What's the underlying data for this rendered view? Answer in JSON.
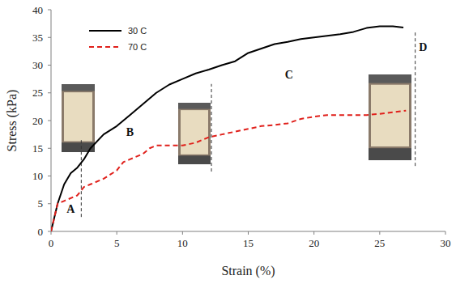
{
  "chart_data": {
    "type": "line",
    "x_label": "Strain (%)",
    "y_label": "Stress (kPa)",
    "xlim": [
      0,
      30
    ],
    "xticks": [
      0,
      5,
      10,
      15,
      20,
      25,
      30
    ],
    "ylim": [
      0,
      40
    ],
    "yticks": [
      0,
      5,
      10,
      15,
      20,
      25,
      30,
      35,
      40
    ],
    "grid": false,
    "legend": "top-left",
    "series": [
      {
        "name": "30 C",
        "color": "#000000",
        "line_style": "solid",
        "x": [
          0,
          0.5,
          1,
          1.5,
          2,
          2.5,
          3,
          4,
          5,
          6,
          7,
          8,
          9,
          10,
          11,
          12,
          13,
          14,
          15,
          16,
          17,
          18,
          19,
          20,
          21,
          22,
          23,
          24,
          25,
          26,
          26.8
        ],
        "values": [
          0,
          5,
          8.5,
          10.5,
          11.5,
          13,
          15,
          17.5,
          19,
          21,
          23,
          25,
          26.5,
          27.5,
          28.5,
          29.2,
          30,
          30.7,
          32.2,
          33,
          33.8,
          34.2,
          34.7,
          35,
          35.3,
          35.6,
          36,
          36.7,
          37,
          37,
          36.8
        ]
      },
      {
        "name": "70 C",
        "color": "#e0201b",
        "line_style": "dashed",
        "x": [
          0,
          0.5,
          1,
          2,
          2.5,
          3,
          4,
          5,
          5.5,
          6,
          7,
          7.5,
          8,
          9,
          10,
          11,
          12,
          13,
          14,
          15,
          16,
          17,
          18,
          19,
          20,
          21,
          22,
          23,
          24,
          25,
          26,
          27
        ],
        "values": [
          0,
          5,
          5.5,
          6.5,
          8,
          8.5,
          9.5,
          11,
          12.5,
          13,
          14,
          15,
          15.5,
          15.5,
          15.5,
          16,
          17,
          17.5,
          18,
          18.5,
          19,
          19.2,
          19.5,
          20.3,
          20.7,
          21,
          21,
          21,
          21,
          21.2,
          21.5,
          21.8
        ]
      }
    ],
    "annotations": [
      {
        "text": "A",
        "x": 1.5,
        "y": 4.1
      },
      {
        "text": "B",
        "x": 6.0,
        "y": 18
      },
      {
        "text": "C",
        "x": 18.1,
        "y": 28.3
      },
      {
        "text": "D",
        "x": 28.3,
        "y": 33.3
      }
    ],
    "reference_lines": [
      {
        "x": 2.3,
        "ymin": 2.6,
        "ymax": 16.6
      },
      {
        "x": 12.2,
        "ymin": 10.8,
        "ymax": 26.6
      },
      {
        "x": 27.7,
        "ymin": 11.8,
        "ymax": 36.2
      }
    ]
  }
}
